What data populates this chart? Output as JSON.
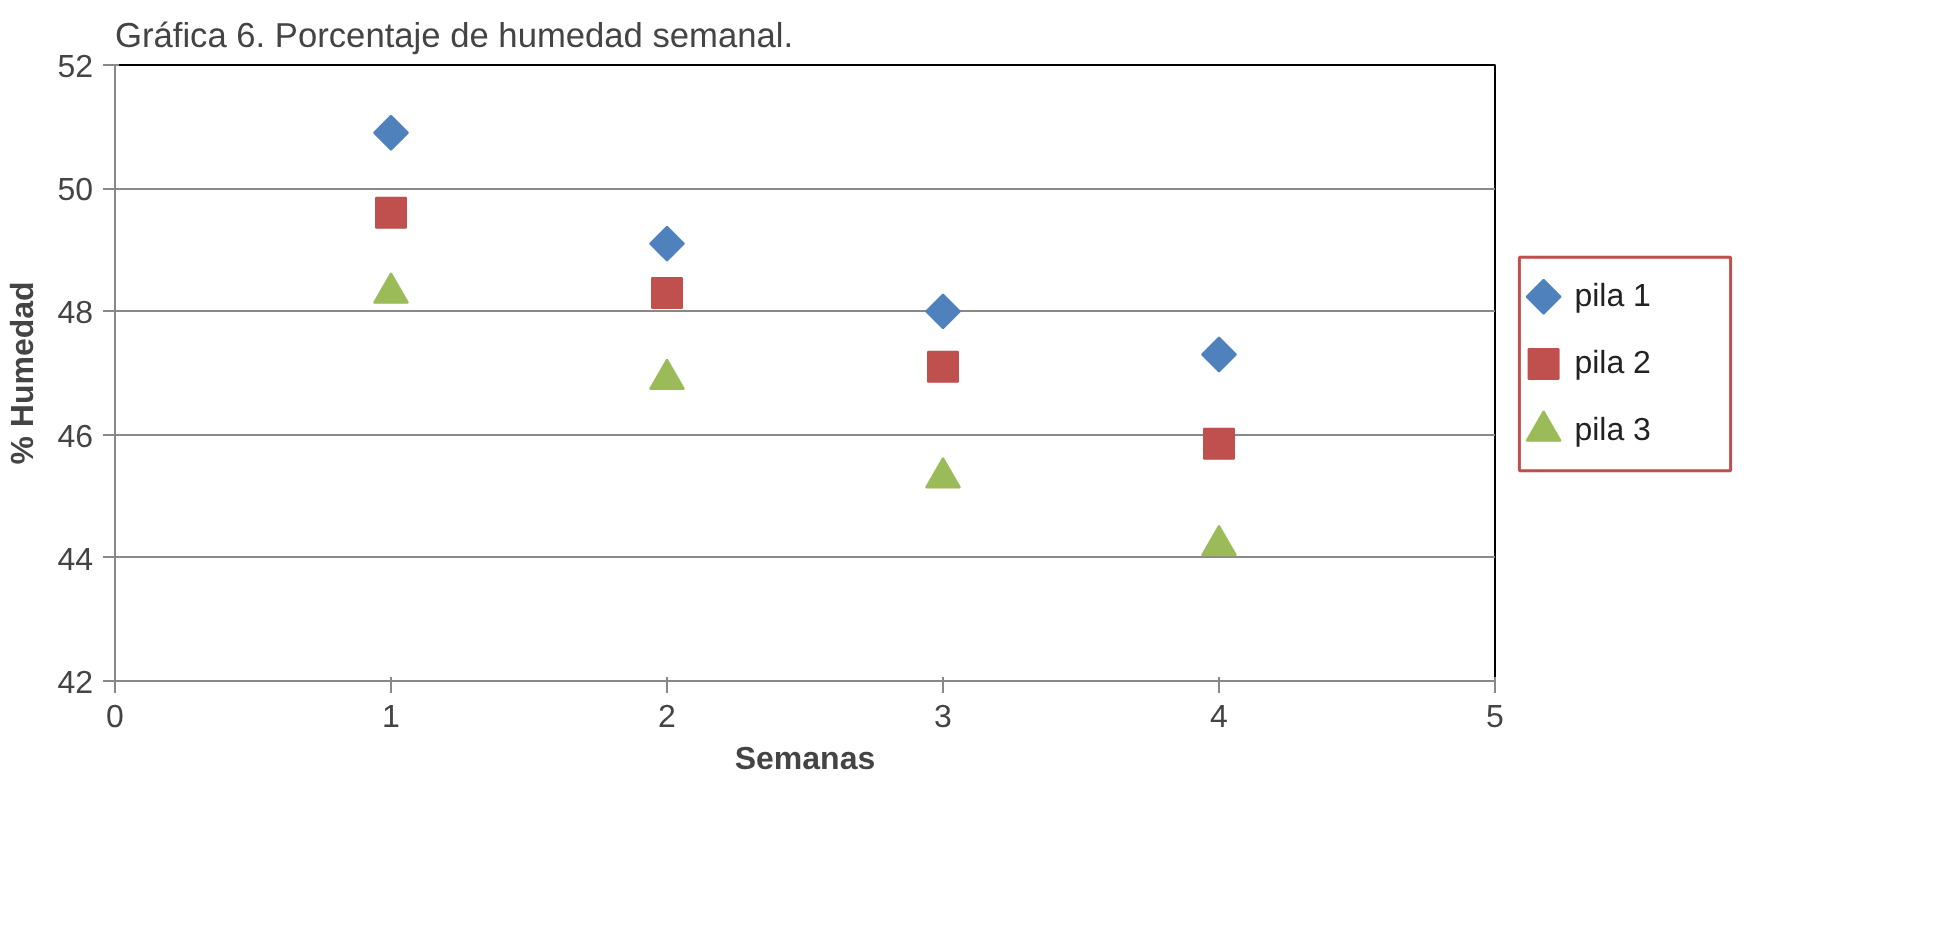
{
  "chart_data": {
    "type": "scatter",
    "title": "Gráfica 6. Porcentaje de humedad semanal.",
    "xlabel": "Semanas",
    "ylabel": "% Humedad",
    "x": [
      1,
      2,
      3,
      4
    ],
    "series": [
      {
        "name": "pila 1",
        "color": "#4f81bd",
        "marker": "diamond",
        "values": [
          50.9,
          49.1,
          48.0,
          47.3
        ]
      },
      {
        "name": "pila 2",
        "color": "#c0504d",
        "marker": "square",
        "values": [
          49.6,
          48.3,
          47.1,
          45.85
        ]
      },
      {
        "name": "pila 3",
        "color": "#9bbb59",
        "marker": "triangle",
        "values": [
          48.3,
          46.9,
          45.3,
          44.2
        ]
      }
    ],
    "xlim": [
      0,
      5
    ],
    "xticks": [
      0,
      1,
      2,
      3,
      4,
      5
    ],
    "ylim": [
      42,
      52
    ],
    "yticks": [
      42,
      44,
      46,
      48,
      50,
      52
    ],
    "grid": "y",
    "legend": "right"
  }
}
